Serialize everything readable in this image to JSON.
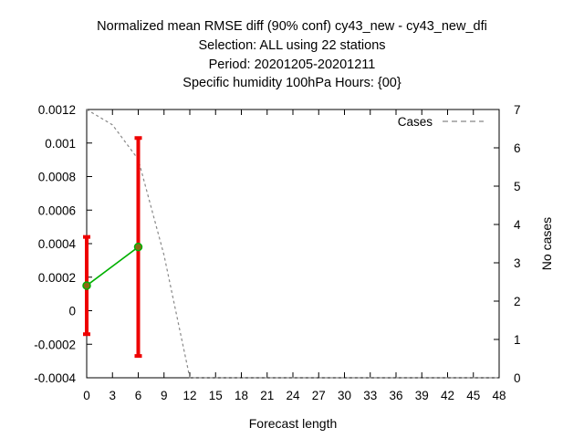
{
  "chart_data": {
    "type": "line",
    "title_lines": [
      "Normalized mean RMSE diff (90% conf) cy43_new - cy43_new_dfi",
      "Selection: ALL using    22 stations",
      "Period: 20201205-20201211",
      "Specific humidity 100hPa   Hours: {00}"
    ],
    "xlabel": "Forecast length",
    "ylabel_right": "No cases",
    "xlim": [
      0,
      48
    ],
    "ylim": [
      -0.0004,
      0.0012
    ],
    "y2lim": [
      0,
      7
    ],
    "x_ticks": [
      "0",
      "3",
      "6",
      "9",
      "12",
      "15",
      "18",
      "21",
      "24",
      "27",
      "30",
      "33",
      "36",
      "39",
      "42",
      "45",
      "48"
    ],
    "y_ticks": [
      "-0.0004",
      "-0.0002",
      "0",
      "0.0002",
      "0.0004",
      "0.0006",
      "0.0008",
      "0.001",
      "0.0012"
    ],
    "y2_ticks": [
      "0",
      "1",
      "2",
      "3",
      "4",
      "5",
      "6",
      "7"
    ],
    "legend": {
      "position": "top-right",
      "label": "Cases"
    },
    "series": [
      {
        "name": "RMSE diff",
        "color": "#00b000",
        "marker_color": "#8b6914",
        "x": [
          0,
          6
        ],
        "y": [
          0.00015,
          0.00038
        ],
        "err_low": [
          -0.00014,
          -0.00027
        ],
        "err_high": [
          0.00044,
          0.00103
        ],
        "err_color": "#ee0000"
      },
      {
        "name": "Cases",
        "axis": "right",
        "color": "#888888",
        "style": "dashed",
        "x": [
          0,
          3,
          6,
          9,
          12,
          48
        ],
        "y": [
          7,
          6.6,
          5.7,
          3.2,
          0,
          0
        ]
      }
    ]
  }
}
